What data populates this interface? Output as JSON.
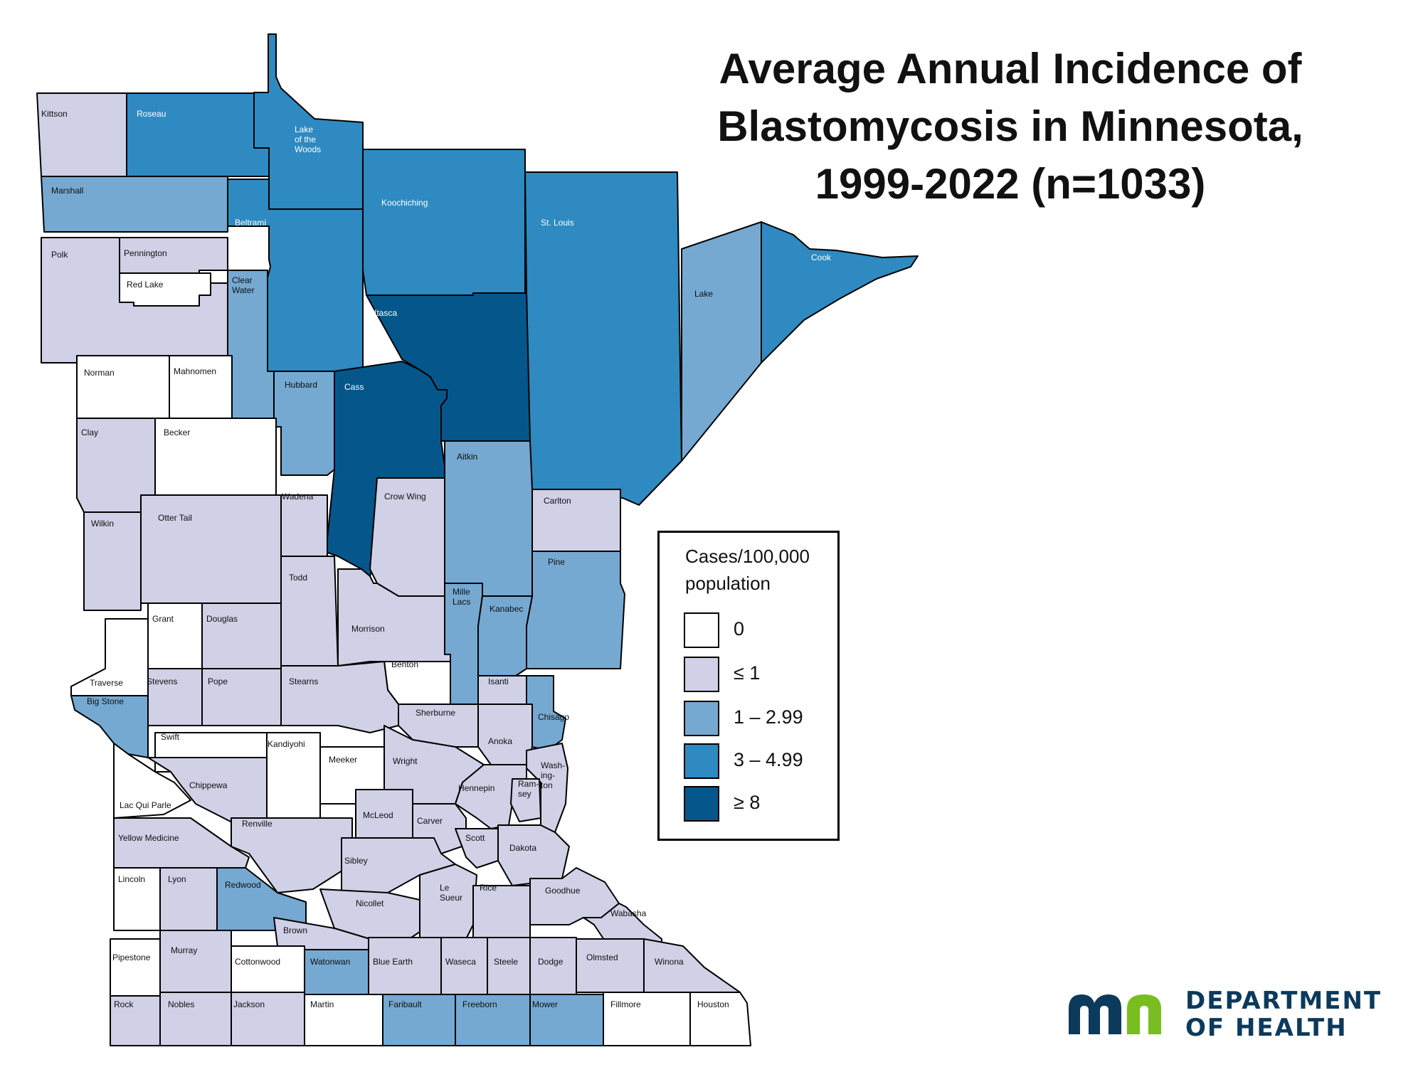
{
  "title": {
    "line1": "Average Annual Incidence of",
    "line2": "Blastomycosis in Minnesota,",
    "line3": "1999-2022 (n=1033)"
  },
  "legend": {
    "title_line1": "Cases/100,000",
    "title_line2": "population",
    "classes": [
      {
        "id": "c0",
        "label": "0",
        "color": "#ffffff"
      },
      {
        "id": "c1",
        "label": "≤ 1",
        "color": "#d0d0e6"
      },
      {
        "id": "c2",
        "label": "1 – 2.99",
        "color": "#75a9d1"
      },
      {
        "id": "c3",
        "label": "3 – 4.99",
        "color": "#2e8ac0"
      },
      {
        "id": "c4",
        "label": "≥ 8",
        "color": "#05578b"
      }
    ]
  },
  "logo": {
    "line1": "DEPARTMENT",
    "line2": "OF HEALTH",
    "colors": {
      "blue": "#0b3a5c",
      "green": "#78be20"
    }
  },
  "counties": [
    {
      "name": "Kittson",
      "cls": "c1"
    },
    {
      "name": "Roseau",
      "cls": "c3"
    },
    {
      "name": "Lake of the Woods",
      "label": [
        "Lake",
        "of the",
        "Woods"
      ],
      "cls": "c3"
    },
    {
      "name": "Marshall",
      "cls": "c2"
    },
    {
      "name": "Koochiching",
      "cls": "c3"
    },
    {
      "name": "St. Louis",
      "cls": "c3"
    },
    {
      "name": "Cook",
      "cls": "c3"
    },
    {
      "name": "Lake",
      "cls": "c2"
    },
    {
      "name": "Beltrami",
      "cls": "c3"
    },
    {
      "name": "Polk",
      "cls": "c1"
    },
    {
      "name": "Pennington",
      "cls": "c1"
    },
    {
      "name": "Red Lake",
      "cls": "c0"
    },
    {
      "name": "Clear Water",
      "label": [
        "Clear",
        "Water"
      ],
      "cls": "c2"
    },
    {
      "name": "Itasca",
      "cls": "c4"
    },
    {
      "name": "Norman",
      "cls": "c0"
    },
    {
      "name": "Mahnomen",
      "cls": "c0"
    },
    {
      "name": "Hubbard",
      "cls": "c2"
    },
    {
      "name": "Cass",
      "cls": "c4"
    },
    {
      "name": "Clay",
      "cls": "c1"
    },
    {
      "name": "Becker",
      "cls": "c0"
    },
    {
      "name": "Aitkin",
      "cls": "c2"
    },
    {
      "name": "Carlton",
      "cls": "c1"
    },
    {
      "name": "Wadena",
      "cls": "c1"
    },
    {
      "name": "Crow Wing",
      "cls": "c1"
    },
    {
      "name": "Wilkin",
      "cls": "c1"
    },
    {
      "name": "Otter Tail",
      "cls": "c1"
    },
    {
      "name": "Pine",
      "cls": "c2"
    },
    {
      "name": "Todd",
      "cls": "c1"
    },
    {
      "name": "Mille Lacs",
      "label": [
        "Mille",
        "Lacs"
      ],
      "cls": "c2"
    },
    {
      "name": "Kanabec",
      "cls": "c2"
    },
    {
      "name": "Grant",
      "cls": "c0"
    },
    {
      "name": "Douglas",
      "cls": "c1"
    },
    {
      "name": "Morrison",
      "cls": "c1"
    },
    {
      "name": "Benton",
      "cls": "c0"
    },
    {
      "name": "Traverse",
      "cls": "c0"
    },
    {
      "name": "Stevens",
      "cls": "c1"
    },
    {
      "name": "Pope",
      "cls": "c1"
    },
    {
      "name": "Stearns",
      "cls": "c1"
    },
    {
      "name": "Isanti",
      "cls": "c1"
    },
    {
      "name": "Big Stone",
      "cls": "c2"
    },
    {
      "name": "Sherburne",
      "cls": "c1"
    },
    {
      "name": "Chisago",
      "cls": "c2"
    },
    {
      "name": "Swift",
      "cls": "c0"
    },
    {
      "name": "Kandiyohi",
      "cls": "c0"
    },
    {
      "name": "Anoka",
      "cls": "c1"
    },
    {
      "name": "Meeker",
      "cls": "c0"
    },
    {
      "name": "Wright",
      "cls": "c1"
    },
    {
      "name": "Washington",
      "label": [
        "Wash-",
        "ing-",
        "ton"
      ],
      "cls": "c1"
    },
    {
      "name": "Chippewa",
      "cls": "c1"
    },
    {
      "name": "Hennepin",
      "cls": "c1"
    },
    {
      "name": "Ramsey",
      "label": [
        "Ram-",
        "sey"
      ],
      "cls": "c1"
    },
    {
      "name": "Lac Qui Parle",
      "cls": "c0"
    },
    {
      "name": "McLeod",
      "cls": "c1"
    },
    {
      "name": "Carver",
      "cls": "c1"
    },
    {
      "name": "Renville",
      "cls": "c1"
    },
    {
      "name": "Scott",
      "cls": "c1"
    },
    {
      "name": "Yellow Medicine",
      "cls": "c1"
    },
    {
      "name": "Dakota",
      "cls": "c1"
    },
    {
      "name": "Sibley",
      "cls": "c1"
    },
    {
      "name": "Lincoln",
      "cls": "c0"
    },
    {
      "name": "Lyon",
      "cls": "c1"
    },
    {
      "name": "Redwood",
      "cls": "c2"
    },
    {
      "name": "Le Sueur",
      "label": [
        "Le",
        "Sueur"
      ],
      "cls": "c1"
    },
    {
      "name": "Rice",
      "cls": "c1"
    },
    {
      "name": "Goodhue",
      "cls": "c1"
    },
    {
      "name": "Nicollet",
      "cls": "c1"
    },
    {
      "name": "Wabasha",
      "cls": "c1"
    },
    {
      "name": "Brown",
      "cls": "c1"
    },
    {
      "name": "Murray",
      "cls": "c1"
    },
    {
      "name": "Olmsted",
      "cls": "c1"
    },
    {
      "name": "Pipestone",
      "cls": "c0"
    },
    {
      "name": "Cottonwood",
      "cls": "c0"
    },
    {
      "name": "Watonwan",
      "cls": "c2"
    },
    {
      "name": "Blue Earth",
      "cls": "c1"
    },
    {
      "name": "Waseca",
      "cls": "c1"
    },
    {
      "name": "Steele",
      "cls": "c1"
    },
    {
      "name": "Dodge",
      "cls": "c1"
    },
    {
      "name": "Winona",
      "cls": "c1"
    },
    {
      "name": "Rock",
      "cls": "c1"
    },
    {
      "name": "Nobles",
      "cls": "c1"
    },
    {
      "name": "Jackson",
      "cls": "c1"
    },
    {
      "name": "Martin",
      "cls": "c0"
    },
    {
      "name": "Faribault",
      "cls": "c2"
    },
    {
      "name": "Freeborn",
      "cls": "c2"
    },
    {
      "name": "Mower",
      "cls": "c2"
    },
    {
      "name": "Fillmore",
      "cls": "c0"
    },
    {
      "name": "Houston",
      "cls": "c0"
    }
  ]
}
